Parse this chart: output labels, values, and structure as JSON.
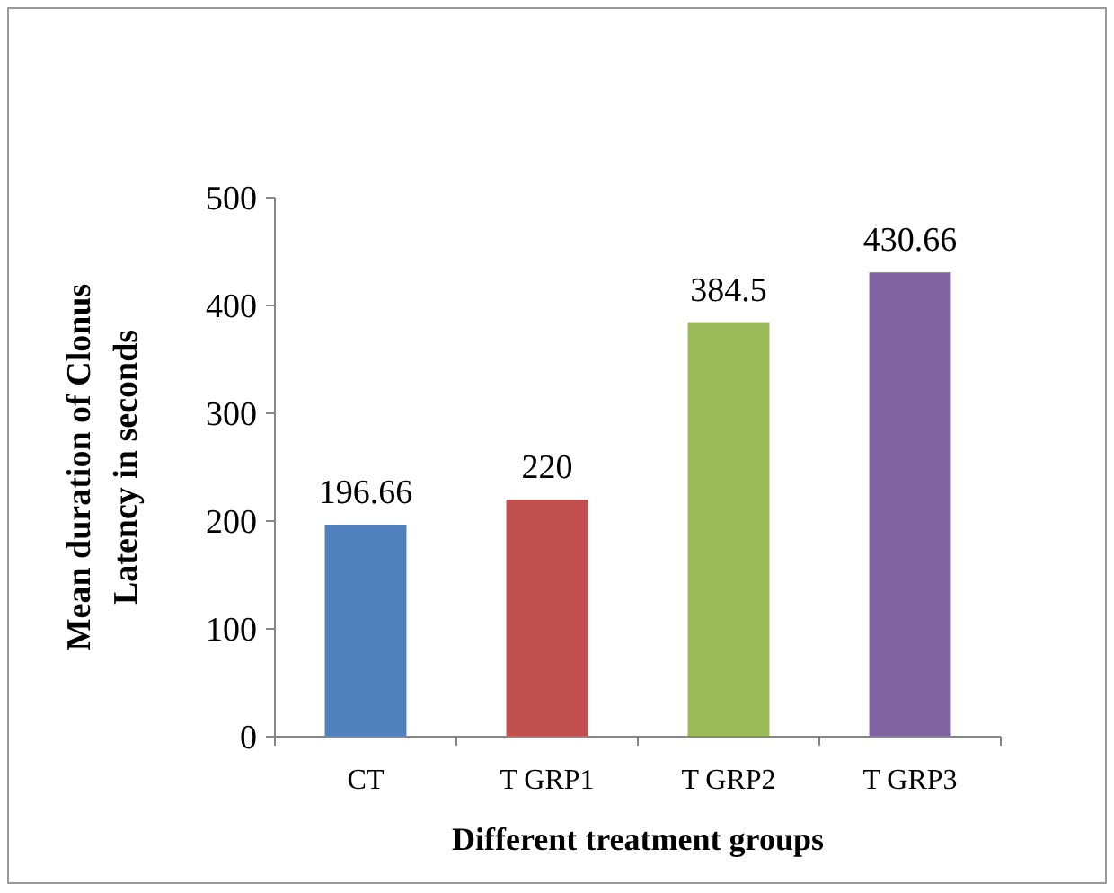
{
  "chart_data": {
    "type": "bar",
    "xlabel": "Different treatment groups",
    "ylabel": "Mean duration of Clonus Latency in seconds",
    "categories": [
      "CT",
      "T GRP1",
      "T GRP2",
      "T GRP3"
    ],
    "values": [
      196.66,
      220,
      384.5,
      430.66
    ],
    "colors": [
      "#4f81bd",
      "#c0504d",
      "#9bbb59",
      "#8064a2"
    ],
    "ylim": [
      0,
      500
    ],
    "yticks": [
      0,
      100,
      200,
      300,
      400,
      500
    ],
    "data_labels": true
  }
}
